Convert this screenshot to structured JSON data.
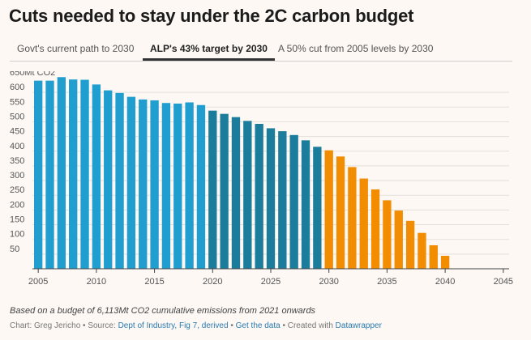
{
  "title": "Cuts needed to stay under the 2C carbon budget",
  "tabs": [
    {
      "label": "Govt's current path to 2030",
      "active": false
    },
    {
      "label": "ALP's 43% target by 2030",
      "active": true
    },
    {
      "label": "A 50% cut from 2005 levels by 2030",
      "active": false
    }
  ],
  "note": "Based on a budget of 6,113Mt CO2 cumulative emissions from 2021 onwards",
  "credit": {
    "prefix": "Chart: Greg Jericho • Source:",
    "source_link": "Dept of Industry, Fig 7, derived",
    "sep1": "•",
    "data_link": "Get the data",
    "sep2": "• Created with",
    "tool_link": "Datawrapper"
  },
  "chart_data": {
    "type": "bar",
    "yunit_label": "650Mt CO2",
    "ylim": [
      0,
      650
    ],
    "yticks": [
      50,
      100,
      150,
      200,
      250,
      300,
      350,
      400,
      450,
      500,
      550,
      600
    ],
    "xlim": [
      2004.5,
      2045.5
    ],
    "xticks": [
      2005,
      2010,
      2015,
      2020,
      2025,
      2030,
      2035,
      2040,
      2045
    ],
    "grid": true,
    "colors": {
      "historical": "#1f9ecf",
      "projected": "#1b7c9c",
      "target": "#f28c00"
    },
    "x": [
      2005,
      2006,
      2007,
      2008,
      2009,
      2010,
      2011,
      2012,
      2013,
      2014,
      2015,
      2016,
      2017,
      2018,
      2019,
      2020,
      2021,
      2022,
      2023,
      2024,
      2025,
      2026,
      2027,
      2028,
      2029,
      2030,
      2031,
      2032,
      2033,
      2034,
      2035,
      2036,
      2037,
      2038,
      2039,
      2040
    ],
    "values": [
      640,
      640,
      652,
      644,
      643,
      627,
      607,
      598,
      585,
      576,
      573,
      564,
      562,
      566,
      557,
      538,
      527,
      516,
      503,
      493,
      478,
      468,
      455,
      437,
      415,
      403,
      382,
      346,
      307,
      270,
      233,
      198,
      163,
      122,
      80,
      44
    ],
    "segment": [
      "historical",
      "historical",
      "historical",
      "historical",
      "historical",
      "historical",
      "historical",
      "historical",
      "historical",
      "historical",
      "historical",
      "historical",
      "historical",
      "historical",
      "historical",
      "projected",
      "projected",
      "projected",
      "projected",
      "projected",
      "projected",
      "projected",
      "projected",
      "projected",
      "projected",
      "target",
      "target",
      "target",
      "target",
      "target",
      "target",
      "target",
      "target",
      "target",
      "target",
      "target"
    ]
  }
}
